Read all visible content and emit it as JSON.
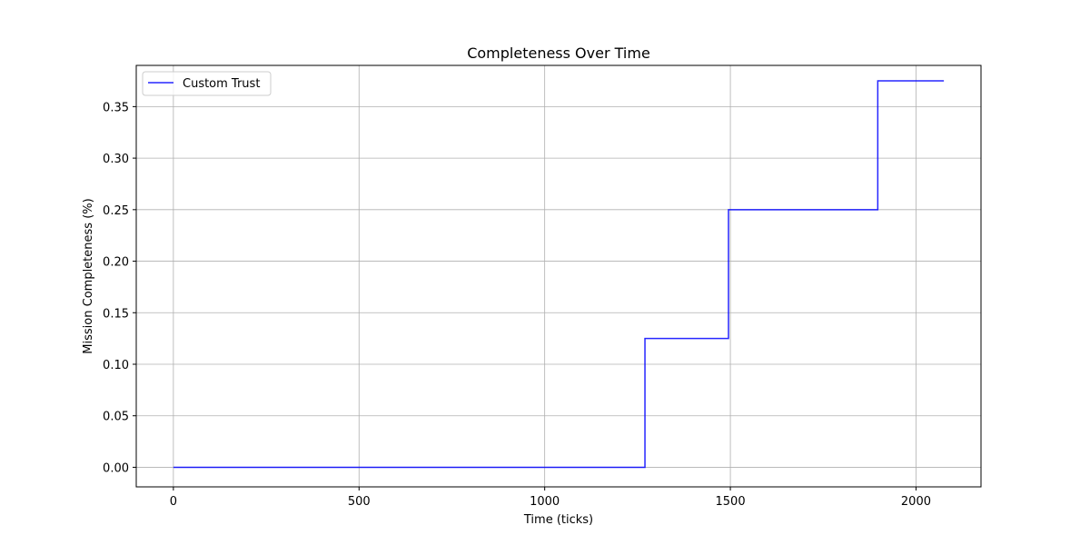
{
  "chart_data": {
    "type": "line",
    "title": "Completeness Over Time",
    "xlabel": "Time (ticks)",
    "ylabel": "Mission Completeness (%)",
    "xlim": [
      -100,
      2175
    ],
    "ylim": [
      -0.019,
      0.39
    ],
    "xticks": [
      0,
      500,
      1000,
      1500,
      2000
    ],
    "xtick_labels": [
      "0",
      "500",
      "1000",
      "1500",
      "2000"
    ],
    "yticks": [
      0.0,
      0.05,
      0.1,
      0.15,
      0.2,
      0.25,
      0.3,
      0.35
    ],
    "ytick_labels": [
      "0.00",
      "0.05",
      "0.10",
      "0.15",
      "0.20",
      "0.25",
      "0.30",
      "0.35"
    ],
    "grid": true,
    "legend_position": "top-left",
    "step": "post",
    "series": [
      {
        "name": "Custom Trust",
        "color": "#0000ff",
        "x": [
          0,
          1270,
          1495,
          1897,
          2075
        ],
        "y": [
          0.0,
          0.125,
          0.25,
          0.375,
          0.375
        ]
      }
    ]
  }
}
